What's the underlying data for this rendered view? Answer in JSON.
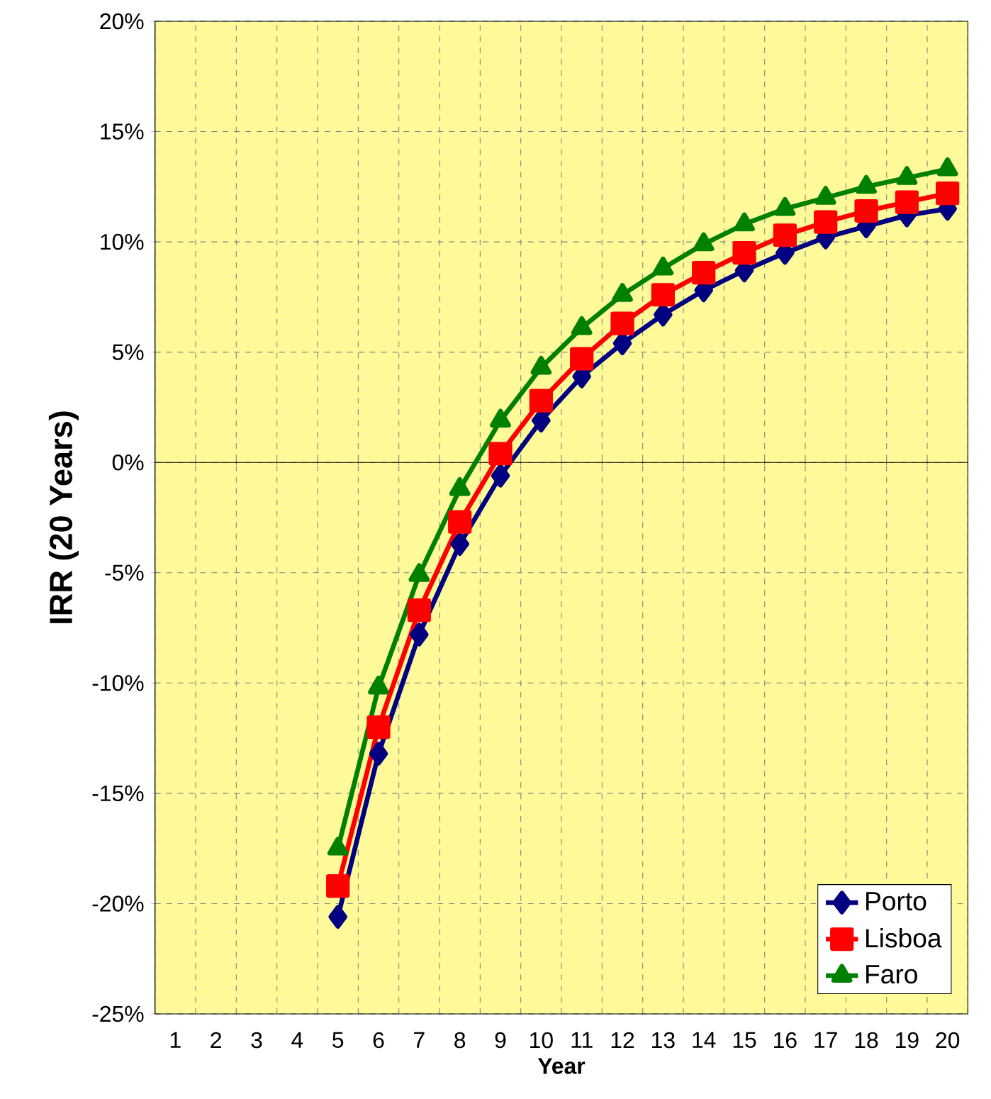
{
  "chart_data": {
    "type": "line",
    "xlabel": "Year",
    "ylabel": "IRR (20 Years)",
    "categories": [
      "1",
      "2",
      "3",
      "4",
      "5",
      "6",
      "7",
      "8",
      "9",
      "10",
      "11",
      "12",
      "13",
      "14",
      "15",
      "16",
      "17",
      "18",
      "19",
      "20"
    ],
    "series": [
      {
        "name": "Porto",
        "color": "#000080",
        "marker": "diamond",
        "values": [
          null,
          null,
          null,
          null,
          -20.6,
          -13.2,
          -7.8,
          -3.7,
          -0.6,
          1.9,
          3.9,
          5.4,
          6.7,
          7.8,
          8.7,
          9.5,
          10.2,
          10.7,
          11.2,
          11.5
        ]
      },
      {
        "name": "Lisboa",
        "color": "#ff0000",
        "marker": "square",
        "values": [
          null,
          null,
          null,
          null,
          -19.2,
          -12.0,
          -6.7,
          -2.7,
          0.4,
          2.8,
          4.7,
          6.3,
          7.6,
          8.6,
          9.5,
          10.3,
          10.9,
          11.4,
          11.8,
          12.2
        ]
      },
      {
        "name": "Faro",
        "color": "#008000",
        "marker": "triangle",
        "values": [
          null,
          null,
          null,
          null,
          -17.5,
          -10.2,
          -5.1,
          -1.2,
          1.9,
          4.3,
          6.1,
          7.6,
          8.8,
          9.9,
          10.8,
          11.5,
          12.0,
          12.5,
          12.9,
          13.3
        ]
      }
    ],
    "ylim": [
      -25,
      20
    ],
    "yticks": [
      {
        "value": -25,
        "label": "-25%"
      },
      {
        "value": -20,
        "label": "-20%"
      },
      {
        "value": -15,
        "label": "-15%"
      },
      {
        "value": -10,
        "label": "-10%"
      },
      {
        "value": -5,
        "label": "-5%"
      },
      {
        "value": 0,
        "label": "0%"
      },
      {
        "value": 5,
        "label": "5%"
      },
      {
        "value": 10,
        "label": "10%"
      },
      {
        "value": 15,
        "label": "15%"
      },
      {
        "value": 20,
        "label": "20%"
      }
    ],
    "grid": true,
    "legend": "bottom right",
    "line_style": "solid"
  }
}
